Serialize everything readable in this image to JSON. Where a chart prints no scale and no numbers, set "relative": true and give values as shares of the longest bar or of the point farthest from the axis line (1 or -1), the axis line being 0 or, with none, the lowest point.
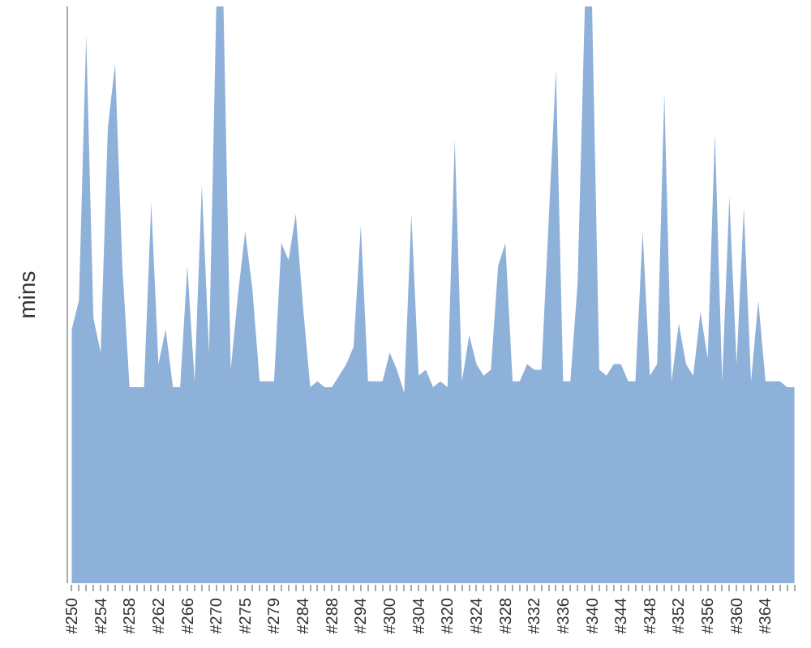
{
  "chart_data": {
    "type": "area",
    "relative": true,
    "ylabel": "mins",
    "categories": [
      "#250",
      null,
      null,
      null,
      "#254",
      null,
      null,
      null,
      "#258",
      null,
      null,
      null,
      "#262",
      null,
      null,
      null,
      "#266",
      null,
      null,
      null,
      "#270",
      null,
      null,
      null,
      "#275",
      null,
      null,
      null,
      "#279",
      null,
      null,
      null,
      "#284",
      null,
      null,
      null,
      "#288",
      null,
      null,
      null,
      "#294",
      null,
      null,
      null,
      "#300",
      null,
      null,
      null,
      "#304",
      null,
      null,
      null,
      "#320",
      null,
      null,
      null,
      "#324",
      null,
      null,
      null,
      "#328",
      null,
      null,
      null,
      "#332",
      null,
      null,
      null,
      "#336",
      null,
      null,
      null,
      "#340",
      null,
      null,
      null,
      "#344",
      null,
      null,
      null,
      "#348",
      null,
      null,
      null,
      "#352",
      null,
      null,
      null,
      "#356",
      null,
      null,
      null,
      "#360",
      null,
      null,
      null,
      "#364",
      null,
      null,
      null,
      null
    ],
    "series": [
      {
        "color": "#8eb1da",
        "values": [
          0.44,
          0.49,
          0.95,
          0.46,
          0.4,
          0.79,
          0.9,
          0.55,
          0.34,
          0.34,
          0.34,
          0.66,
          0.38,
          0.44,
          0.34,
          0.34,
          0.55,
          0.35,
          0.69,
          0.4,
          1,
          1,
          0.37,
          0.5,
          0.61,
          0.51,
          0.35,
          0.35,
          0.35,
          0.59,
          0.56,
          0.64,
          0.48,
          0.34,
          0.35,
          0.34,
          0.34,
          0.36,
          0.38,
          0.41,
          0.62,
          0.35,
          0.35,
          0.35,
          0.4,
          0.37,
          0.33,
          0.64,
          0.36,
          0.37,
          0.34,
          0.35,
          0.34,
          0.77,
          0.35,
          0.43,
          0.38,
          0.36,
          0.37,
          0.55,
          0.59,
          0.35,
          0.35,
          0.38,
          0.37,
          0.37,
          0.63,
          0.89,
          0.35,
          0.35,
          0.52,
          1,
          1,
          0.37,
          0.36,
          0.38,
          0.38,
          0.35,
          0.35,
          0.61,
          0.36,
          0.38,
          0.85,
          0.35,
          0.45,
          0.38,
          0.36,
          0.47,
          0.39,
          0.78,
          0.35,
          0.67,
          0.38,
          0.65,
          0.35,
          0.49,
          0.35,
          0.35,
          0.35,
          0.34,
          0.34
        ]
      }
    ]
  }
}
